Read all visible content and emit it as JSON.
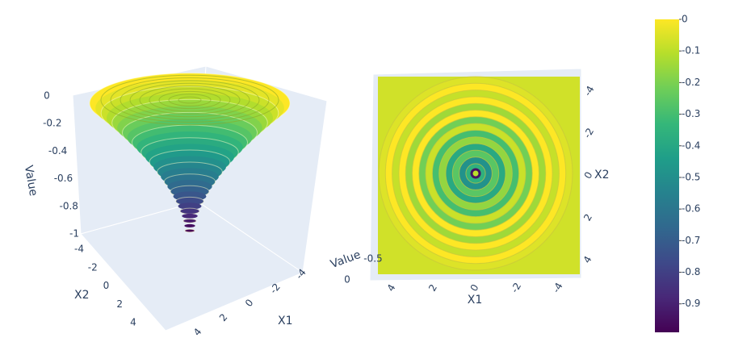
{
  "chart_data": [
    {
      "type": "surface3d",
      "x_label": "X1",
      "y_label": "X2",
      "z_label": "Value",
      "xticks": [
        4,
        2,
        0,
        -2,
        -4
      ],
      "yticks": [
        -4,
        -2,
        0,
        2,
        4
      ],
      "zticks": [
        0,
        -0.2,
        -0.4,
        -0.6,
        -0.8,
        -1
      ],
      "zlim": [
        -1,
        0
      ]
    },
    {
      "type": "surface3d-top",
      "x_label": "X1",
      "y_label": "X2",
      "z_label": "Value",
      "xticks": [
        4,
        2,
        0,
        -2,
        -4
      ],
      "yticks": [
        -4,
        -2,
        0,
        2,
        4
      ],
      "zticks": [
        -0.5,
        0
      ]
    },
    {
      "type": "colorbar",
      "ylim": [
        -0.99,
        0
      ],
      "yticks": [
        0,
        -0.1,
        -0.2,
        -0.3,
        -0.4,
        -0.5,
        -0.6,
        -0.7,
        -0.8,
        -0.9
      ],
      "colors": [
        "#440154",
        "#482878",
        "#3e4989",
        "#31688e",
        "#26828e",
        "#1f9e89",
        "#35b779",
        "#6ece58",
        "#b5de2b",
        "#fde725"
      ]
    }
  ]
}
